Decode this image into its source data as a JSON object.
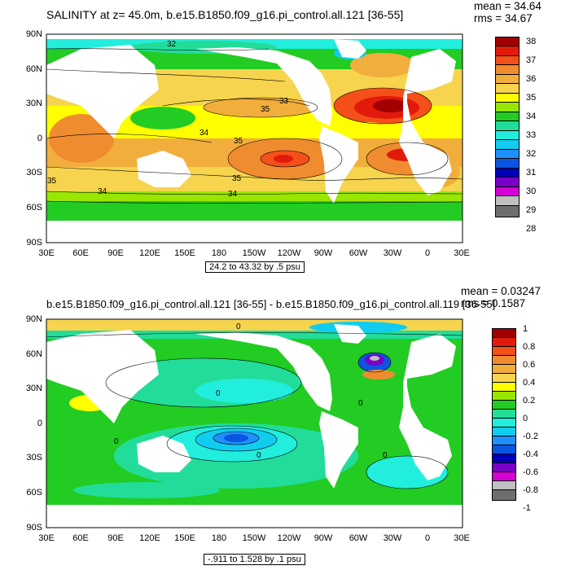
{
  "panel1": {
    "title": "SALINITY at z=  45.0m, b.e15.B1850.f09_g16.pi_control.all.121 [36-55]",
    "mean": "mean = 34.64",
    "rms": "rms = 34.67",
    "range": "24.2 to 43.32 by .5 psu",
    "contour_labels": [
      "32",
      "35",
      "33",
      "34",
      "35",
      "35",
      "35",
      "34",
      "34"
    ],
    "colorbar": {
      "labels": [
        "38",
        "37",
        "36",
        "35",
        "34",
        "33",
        "32",
        "31",
        "30",
        "29",
        "28"
      ],
      "colors": [
        "#a00000",
        "#e21a0c",
        "#f5501a",
        "#f08c30",
        "#f2ae3c",
        "#f6d44e",
        "#ffff00",
        "#99e600",
        "#22cc22",
        "#22dd99",
        "#22eedd",
        "#11ccee",
        "#1e90ff",
        "#0b55e0",
        "#0000bb",
        "#7a00c8",
        "#d400d4",
        "#c0c0c0",
        "#6e6e6e"
      ]
    }
  },
  "panel2": {
    "title": "b.e15.B1850.f09_g16.pi_control.all.121 [36-55] - b.e15.B1850.f09_g16.pi_control.all.119 [36-55]",
    "mean": "mean = 0.03247",
    "rms": "rms = 0.1587",
    "range": "-.911 to 1.528 by .1 psu",
    "contour_labels": [
      "0",
      "0",
      "0",
      "0",
      "0",
      "0"
    ],
    "colorbar": {
      "labels": [
        "1",
        "0.8",
        "0.6",
        "0.4",
        "0.2",
        "0",
        "-0.2",
        "-0.4",
        "-0.6",
        "-0.8",
        "-1"
      ],
      "colors": [
        "#a00000",
        "#e21a0c",
        "#f5501a",
        "#f08c30",
        "#f2ae3c",
        "#f6d44e",
        "#ffff00",
        "#99e600",
        "#22cc22",
        "#22dd99",
        "#22eedd",
        "#11ccee",
        "#1e90ff",
        "#0b55e0",
        "#0000bb",
        "#7a00c8",
        "#d400d4",
        "#c0c0c0",
        "#6e6e6e"
      ]
    }
  },
  "axes": {
    "lat_labels": [
      "90N",
      "60N",
      "30N",
      "0",
      "30S",
      "60S",
      "90S"
    ],
    "lon_labels": [
      "30E",
      "60E",
      "90E",
      "120E",
      "150E",
      "180",
      "150W",
      "120W",
      "90W",
      "60W",
      "30W",
      "0",
      "30E"
    ]
  }
}
